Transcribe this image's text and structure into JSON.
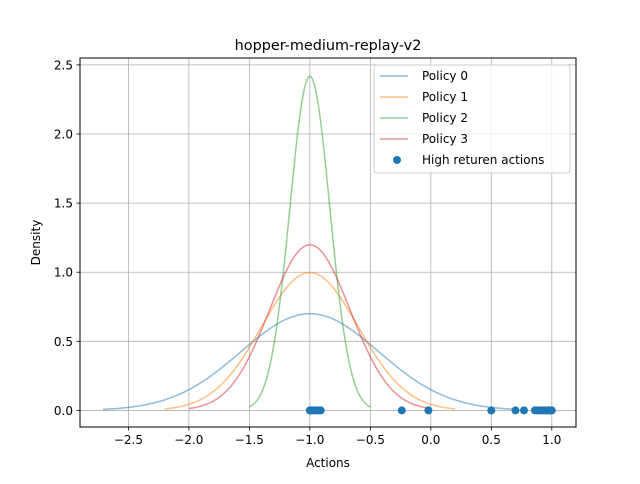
{
  "chart_data": {
    "type": "line",
    "title": "hopper-medium-replay-v2",
    "xlabel": "Actions",
    "ylabel": "Density",
    "xlim": [
      -2.9,
      1.2
    ],
    "ylim": [
      -0.12,
      2.55
    ],
    "xticks": [
      -2.5,
      -2.0,
      -1.5,
      -1.0,
      -0.5,
      0.0,
      0.5,
      1.0
    ],
    "xtick_labels": [
      "−2.5",
      "−2.0",
      "−1.5",
      "−1.0",
      "−0.5",
      "0.0",
      "0.5",
      "1.0"
    ],
    "yticks": [
      0.0,
      0.5,
      1.0,
      1.5,
      2.0,
      2.5
    ],
    "ytick_labels": [
      "0.0",
      "0.5",
      "1.0",
      "1.5",
      "2.0",
      "2.5"
    ],
    "grid": true,
    "legend_position": "top-right",
    "series": [
      {
        "name": "Policy 0",
        "color": "#1f77b4",
        "mean": -1.0,
        "std": 0.57,
        "x_range": [
          -2.71,
          0.71
        ]
      },
      {
        "name": "Policy 1",
        "color": "#ff7f0e",
        "mean": -1.0,
        "std": 0.4,
        "x_range": [
          -2.2,
          0.2
        ]
      },
      {
        "name": "Policy 2",
        "color": "#2ca02c",
        "mean": -1.0,
        "std": 0.165,
        "x_range": [
          -1.5,
          -0.5
        ]
      },
      {
        "name": "Policy 3",
        "color": "#d62728",
        "mean": -1.0,
        "std": 0.333,
        "x_range": [
          -2.0,
          0.0
        ]
      }
    ],
    "scatter": {
      "name": "High returen actions",
      "color": "#1f77b4",
      "x": [
        -1.0,
        -0.99,
        -0.97,
        -0.95,
        -0.93,
        -0.91,
        -0.24,
        -0.02,
        0.5,
        0.7,
        0.77,
        0.86,
        0.88,
        0.9,
        0.92,
        0.94,
        0.96,
        0.97,
        0.98,
        0.99,
        1.0
      ],
      "y": [
        0,
        0,
        0,
        0,
        0,
        0,
        0,
        0,
        0,
        0,
        0,
        0,
        0,
        0,
        0,
        0,
        0,
        0,
        0,
        0,
        0
      ]
    }
  }
}
